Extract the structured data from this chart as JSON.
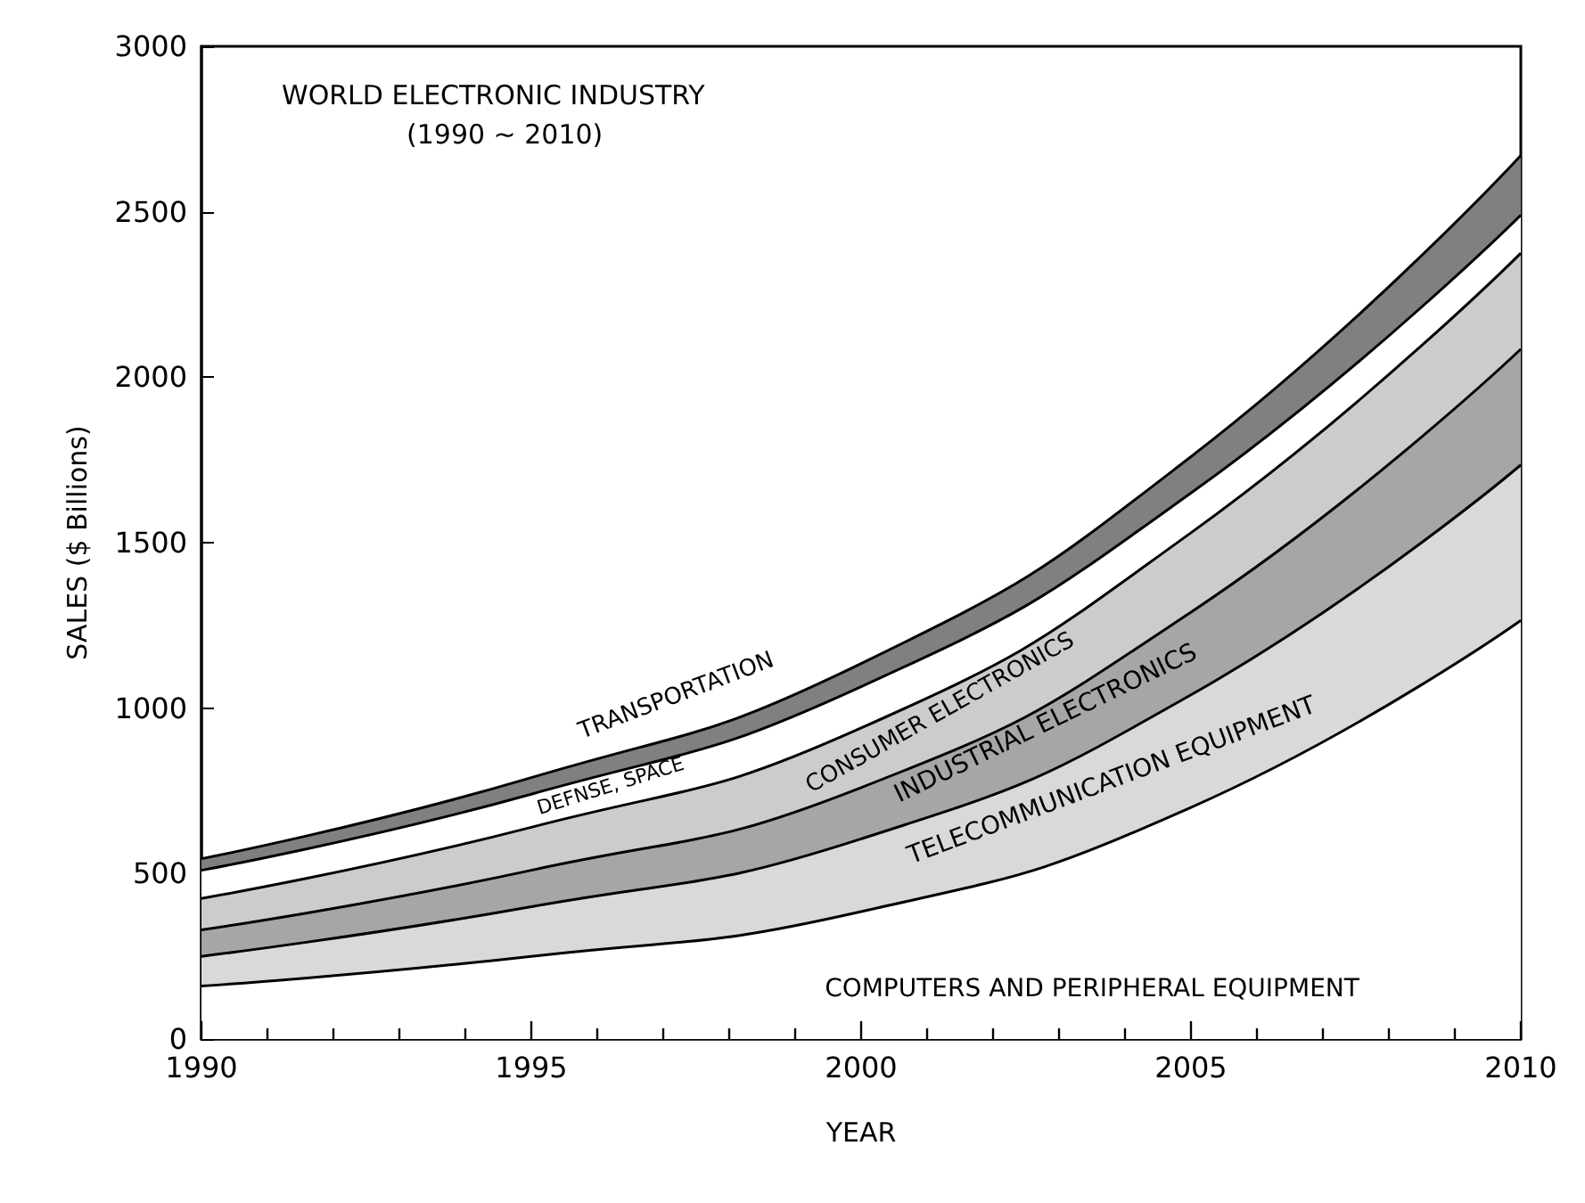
{
  "chart_data": {
    "type": "area",
    "stacked": true,
    "title": "WORLD ELECTRONIC INDUSTRY",
    "subtitle": "(1990 ~ 2010)",
    "xlabel": "YEAR",
    "ylabel": "SALES ($ Billions)",
    "x": [
      1990,
      1995,
      2000,
      2005,
      2010
    ],
    "series": [
      {
        "name": "COMPUTERS AND PERIPHERAL EQUIPMENT",
        "color": "#ffffff",
        "values": [
          160,
          250,
          385,
          700,
          1265
        ]
      },
      {
        "name": "TELECOMMUNICATION EQUIPMENT",
        "color": "#d9d9d9",
        "values": [
          90,
          150,
          220,
          340,
          470
        ]
      },
      {
        "name": "INDUSTRIAL ELECTRONICS",
        "color": "#a6a6a6",
        "values": [
          80,
          110,
          155,
          250,
          350
        ]
      },
      {
        "name": "CONSUMER ELECTRONICS",
        "color": "#cccccc",
        "values": [
          95,
          130,
          180,
          240,
          290
        ]
      },
      {
        "name": "DEFNSE, SPACE",
        "color": "#ffffff",
        "values": [
          85,
          100,
          125,
          120,
          115
        ]
      },
      {
        "name": "TRANSPORTATION",
        "color": "#808080",
        "values": [
          35,
          50,
          70,
          110,
          180
        ]
      }
    ],
    "xlim": [
      1990,
      2010
    ],
    "xticks": [
      1990,
      {
        "value": 1991,
        "label": null
      },
      {
        "value": 1992,
        "label": null
      },
      {
        "value": 1993,
        "label": null
      },
      {
        "value": 1994,
        "label": null
      },
      1995,
      {
        "value": 1996,
        "label": null
      },
      {
        "value": 1997,
        "label": null
      },
      {
        "value": 1998,
        "label": null
      },
      {
        "value": 1999,
        "label": null
      },
      2000,
      {
        "value": 2001,
        "label": null
      },
      {
        "value": 2002,
        "label": null
      },
      {
        "value": 2003,
        "label": null
      },
      {
        "value": 2004,
        "label": null
      },
      2005,
      {
        "value": 2006,
        "label": null
      },
      {
        "value": 2007,
        "label": null
      },
      {
        "value": 2008,
        "label": null
      },
      {
        "value": 2009,
        "label": null
      },
      2010
    ],
    "ylim": [
      0,
      3000
    ],
    "yticks": [
      0,
      500,
      1000,
      1500,
      2000,
      2500,
      3000
    ],
    "grid": false,
    "legend": false,
    "marker": "none",
    "line_style": "solid"
  }
}
